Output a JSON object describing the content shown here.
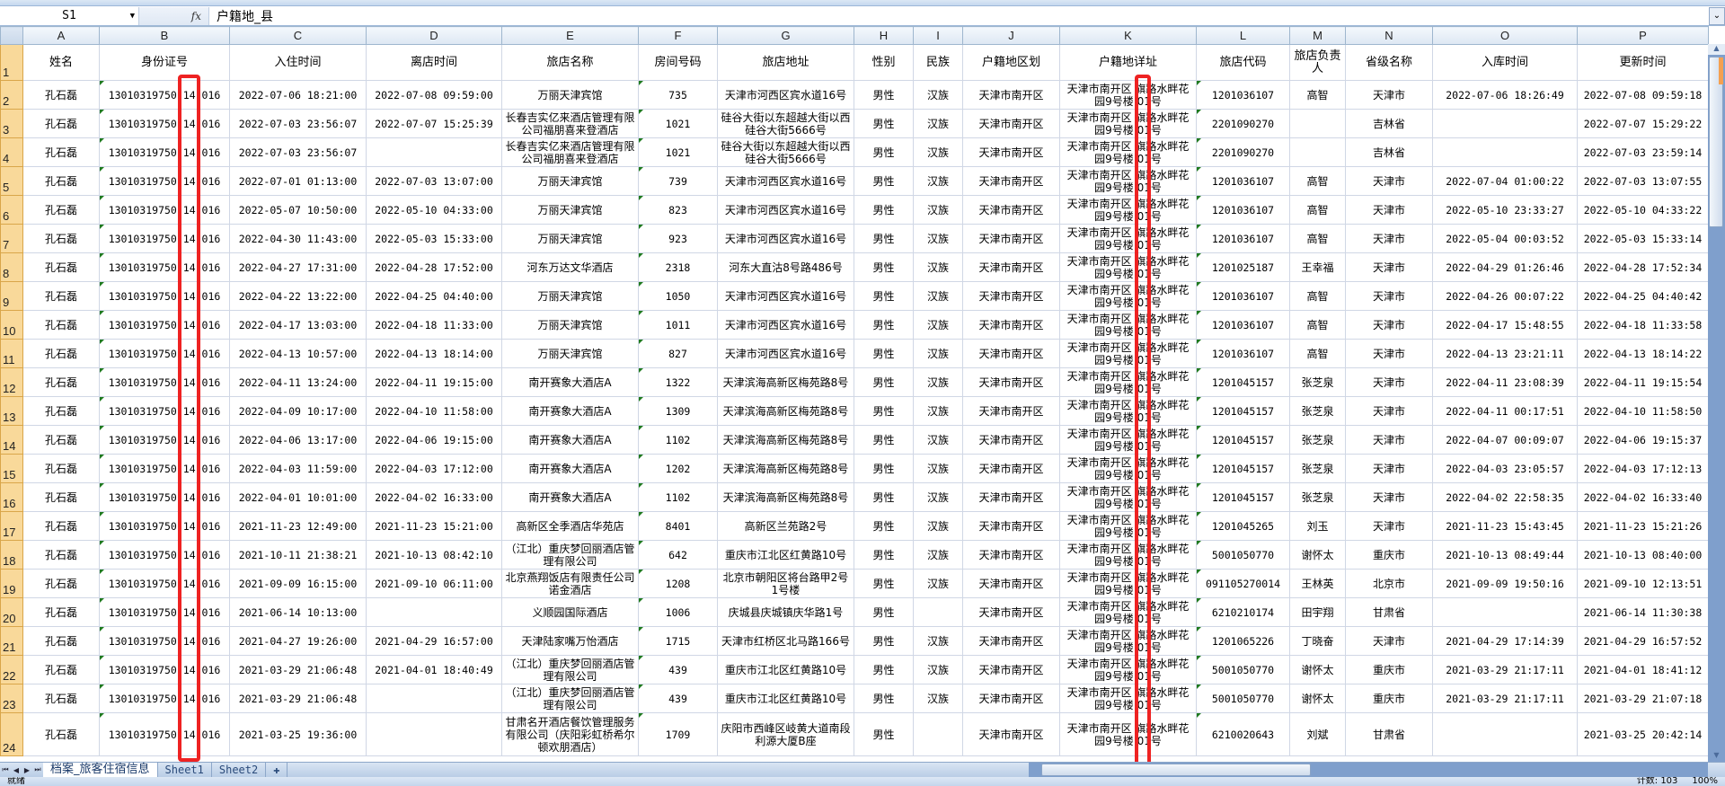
{
  "formula_bar": {
    "name_box": "S1",
    "fx_label": "fx",
    "content": "户籍地_县"
  },
  "columns": [
    "A",
    "B",
    "C",
    "D",
    "E",
    "F",
    "G",
    "H",
    "I",
    "J",
    "K",
    "L",
    "M",
    "N",
    "O",
    "P"
  ],
  "header_row": [
    "姓名",
    "身份证号",
    "入住时间",
    "离店时间",
    "旅店名称",
    "房间号码",
    "旅店地址",
    "性别",
    "民族",
    "户籍地区划",
    "户籍地详址",
    "旅店代码",
    "旅店负责人",
    "省级名称",
    "入库时间",
    "更新时间"
  ],
  "rows": [
    [
      "孔石磊",
      "13010319750 14 016",
      "2022-07-06 18:21:00",
      "2022-07-08 09:59:00",
      "万丽天津宾馆",
      "735",
      "天津市河西区宾水道16号",
      "男性",
      "汉族",
      "天津市南开区",
      "天津市南开区 旗路水畔花园9号楼 01号",
      "1201036107",
      "高智",
      "天津市",
      "2022-07-06 18:26:49",
      "2022-07-08 09:59:18"
    ],
    [
      "孔石磊",
      "13010319750 14 016",
      "2022-07-03 23:56:07",
      "2022-07-07 15:25:39",
      "长春吉实亿来酒店管理有限公司福朋喜来登酒店",
      "1021",
      "硅谷大街以东超越大街以西硅谷大街5666号",
      "男性",
      "汉族",
      "天津市南开区",
      "天津市南开区 旗路水畔花园9号楼 01号",
      "2201090270",
      "",
      "吉林省",
      "",
      "2022-07-07 15:29:22"
    ],
    [
      "孔石磊",
      "13010319750 14 016",
      "2022-07-03 23:56:07",
      "",
      "长春吉实亿来酒店管理有限公司福朋喜来登酒店",
      "1021",
      "硅谷大街以东超越大街以西硅谷大街5666号",
      "男性",
      "汉族",
      "天津市南开区",
      "天津市南开区 旗路水畔花园9号楼 01号",
      "2201090270",
      "",
      "吉林省",
      "",
      "2022-07-03 23:59:14"
    ],
    [
      "孔石磊",
      "13010319750 14 016",
      "2022-07-01 01:13:00",
      "2022-07-03 13:07:00",
      "万丽天津宾馆",
      "739",
      "天津市河西区宾水道16号",
      "男性",
      "汉族",
      "天津市南开区",
      "天津市南开区 旗路水畔花园9号楼 01号",
      "1201036107",
      "高智",
      "天津市",
      "2022-07-04 01:00:22",
      "2022-07-03 13:07:55"
    ],
    [
      "孔石磊",
      "13010319750 14 016",
      "2022-05-07 10:50:00",
      "2022-05-10 04:33:00",
      "万丽天津宾馆",
      "823",
      "天津市河西区宾水道16号",
      "男性",
      "汉族",
      "天津市南开区",
      "天津市南开区 旗路水畔花园9号楼 01号",
      "1201036107",
      "高智",
      "天津市",
      "2022-05-10 23:33:27",
      "2022-05-10 04:33:22"
    ],
    [
      "孔石磊",
      "13010319750 14 016",
      "2022-04-30 11:43:00",
      "2022-05-03 15:33:00",
      "万丽天津宾馆",
      "923",
      "天津市河西区宾水道16号",
      "男性",
      "汉族",
      "天津市南开区",
      "天津市南开区 旗路水畔花园9号楼 01号",
      "1201036107",
      "高智",
      "天津市",
      "2022-05-04 00:03:52",
      "2022-05-03 15:33:14"
    ],
    [
      "孔石磊",
      "13010319750 14 016",
      "2022-04-27 17:31:00",
      "2022-04-28 17:52:00",
      "河东万达文华酒店",
      "2318",
      "河东大直沽8号路486号",
      "男性",
      "汉族",
      "天津市南开区",
      "天津市南开区 旗路水畔花园9号楼 01号",
      "1201025187",
      "王幸福",
      "天津市",
      "2022-04-29 01:26:46",
      "2022-04-28 17:52:34"
    ],
    [
      "孔石磊",
      "13010319750 14 016",
      "2022-04-22 13:22:00",
      "2022-04-25 04:40:00",
      "万丽天津宾馆",
      "1050",
      "天津市河西区宾水道16号",
      "男性",
      "汉族",
      "天津市南开区",
      "天津市南开区 旗路水畔花园9号楼 01号",
      "1201036107",
      "高智",
      "天津市",
      "2022-04-26 00:07:22",
      "2022-04-25 04:40:42"
    ],
    [
      "孔石磊",
      "13010319750 14 016",
      "2022-04-17 13:03:00",
      "2022-04-18 11:33:00",
      "万丽天津宾馆",
      "1011",
      "天津市河西区宾水道16号",
      "男性",
      "汉族",
      "天津市南开区",
      "天津市南开区 旗路水畔花园9号楼 01号",
      "1201036107",
      "高智",
      "天津市",
      "2022-04-17 15:48:55",
      "2022-04-18 11:33:58"
    ],
    [
      "孔石磊",
      "13010319750 14 016",
      "2022-04-13 10:57:00",
      "2022-04-13 18:14:00",
      "万丽天津宾馆",
      "827",
      "天津市河西区宾水道16号",
      "男性",
      "汉族",
      "天津市南开区",
      "天津市南开区 旗路水畔花园9号楼 01号",
      "1201036107",
      "高智",
      "天津市",
      "2022-04-13 23:21:11",
      "2022-04-13 18:14:22"
    ],
    [
      "孔石磊",
      "13010319750 14 016",
      "2022-04-11 13:24:00",
      "2022-04-11 19:15:00",
      "南开赛象大酒店A",
      "1322",
      "天津滨海高新区梅苑路8号",
      "男性",
      "汉族",
      "天津市南开区",
      "天津市南开区 旗路水畔花园9号楼 01号",
      "1201045157",
      "张芝泉",
      "天津市",
      "2022-04-11 23:08:39",
      "2022-04-11 19:15:54"
    ],
    [
      "孔石磊",
      "13010319750 14 016",
      "2022-04-09 10:17:00",
      "2022-04-10 11:58:00",
      "南开赛象大酒店A",
      "1309",
      "天津滨海高新区梅苑路8号",
      "男性",
      "汉族",
      "天津市南开区",
      "天津市南开区 旗路水畔花园9号楼 01号",
      "1201045157",
      "张芝泉",
      "天津市",
      "2022-04-11 00:17:51",
      "2022-04-10 11:58:50"
    ],
    [
      "孔石磊",
      "13010319750 14 016",
      "2022-04-06 13:17:00",
      "2022-04-06 19:15:00",
      "南开赛象大酒店A",
      "1102",
      "天津滨海高新区梅苑路8号",
      "男性",
      "汉族",
      "天津市南开区",
      "天津市南开区 旗路水畔花园9号楼 01号",
      "1201045157",
      "张芝泉",
      "天津市",
      "2022-04-07 00:09:07",
      "2022-04-06 19:15:37"
    ],
    [
      "孔石磊",
      "13010319750 14 016",
      "2022-04-03 11:59:00",
      "2022-04-03 17:12:00",
      "南开赛象大酒店A",
      "1202",
      "天津滨海高新区梅苑路8号",
      "男性",
      "汉族",
      "天津市南开区",
      "天津市南开区 旗路水畔花园9号楼 01号",
      "1201045157",
      "张芝泉",
      "天津市",
      "2022-04-03 23:05:57",
      "2022-04-03 17:12:13"
    ],
    [
      "孔石磊",
      "13010319750 14 016",
      "2022-04-01 10:01:00",
      "2022-04-02 16:33:00",
      "南开赛象大酒店A",
      "1102",
      "天津滨海高新区梅苑路8号",
      "男性",
      "汉族",
      "天津市南开区",
      "天津市南开区 旗路水畔花园9号楼 01号",
      "1201045157",
      "张芝泉",
      "天津市",
      "2022-04-02 22:58:35",
      "2022-04-02 16:33:40"
    ],
    [
      "孔石磊",
      "13010319750 14 016",
      "2021-11-23 12:49:00",
      "2021-11-23 15:21:00",
      "高新区全季酒店华苑店",
      "8401",
      "高新区兰苑路2号",
      "男性",
      "汉族",
      "天津市南开区",
      "天津市南开区 旗路水畔花园9号楼 01号",
      "1201045265",
      "刘玉",
      "天津市",
      "2021-11-23 15:43:45",
      "2021-11-23 15:21:26"
    ],
    [
      "孔石磊",
      "13010319750 14 016",
      "2021-10-11 21:38:21",
      "2021-10-13 08:42:10",
      "（江北）重庆梦回丽酒店管理有限公司",
      "642",
      "重庆市江北区红黄路10号",
      "男性",
      "汉族",
      "天津市南开区",
      "天津市南开区 旗路水畔花园9号楼 01号",
      "5001050770",
      "谢怀太",
      "重庆市",
      "2021-10-13 08:49:44",
      "2021-10-13 08:40:00"
    ],
    [
      "孔石磊",
      "13010319750 14 016",
      "2021-09-09 16:15:00",
      "2021-09-10 06:11:00",
      "北京燕翔饭店有限责任公司诺金酒店",
      "1208",
      "北京市朝阳区将台路甲2号1号楼",
      "男性",
      "汉族",
      "天津市南开区",
      "天津市南开区 旗路水畔花园9号楼 01号",
      "091105270014",
      "王林英",
      "北京市",
      "2021-09-09 19:50:16",
      "2021-09-10 12:13:51"
    ],
    [
      "孔石磊",
      "13010319750 14 016",
      "2021-06-14 10:13:00",
      "",
      "义顺园国际酒店",
      "1006",
      "庆城县庆城镇庆华路1号",
      "男性",
      "",
      "天津市南开区",
      "天津市南开区 旗路水畔花园9号楼 01号",
      "6210210174",
      "田宇翔",
      "甘肃省",
      "",
      "2021-06-14 11:30:38"
    ],
    [
      "孔石磊",
      "13010319750 14 016",
      "2021-04-27 19:26:00",
      "2021-04-29 16:57:00",
      "天津陆家嘴万怡酒店",
      "1715",
      "天津市红桥区北马路166号",
      "男性",
      "汉族",
      "天津市南开区",
      "天津市南开区 旗路水畔花园9号楼 01号",
      "1201065226",
      "丁晓奋",
      "天津市",
      "2021-04-29 17:14:39",
      "2021-04-29 16:57:52"
    ],
    [
      "孔石磊",
      "13010319750 14 016",
      "2021-03-29 21:06:48",
      "2021-04-01 18:40:49",
      "（江北）重庆梦回丽酒店管理有限公司",
      "439",
      "重庆市江北区红黄路10号",
      "男性",
      "汉族",
      "天津市南开区",
      "天津市南开区 旗路水畔花园9号楼 01号",
      "5001050770",
      "谢怀太",
      "重庆市",
      "2021-03-29 21:17:11",
      "2021-04-01 18:41:12"
    ],
    [
      "孔石磊",
      "13010319750 14 016",
      "2021-03-29 21:06:48",
      "",
      "（江北）重庆梦回丽酒店管理有限公司",
      "439",
      "重庆市江北区红黄路10号",
      "男性",
      "汉族",
      "天津市南开区",
      "天津市南开区 旗路水畔花园9号楼 01号",
      "5001050770",
      "谢怀太",
      "重庆市",
      "2021-03-29 21:17:11",
      "2021-03-29 21:07:18"
    ],
    [
      "孔石磊",
      "13010319750 14 016",
      "2021-03-25 19:36:00",
      "",
      "甘肃名开酒店餐饮管理服务有限公司（庆阳彩虹桥希尔顿欢朋酒店）",
      "1709",
      "庆阳市西峰区岐黄大道南段利源大厦B座",
      "男性",
      "",
      "天津市南开区",
      "天津市南开区 旗路水畔花园9号楼 01号",
      "6210020643",
      "刘斌",
      "甘肃省",
      "",
      "2021-03-25 20:42:14"
    ]
  ],
  "sheet_tabs": {
    "active": "档案_旅客住宿信息",
    "others": [
      "Sheet1",
      "Sheet2"
    ]
  },
  "status": {
    "ready": "就绪",
    "count": "计数: 103",
    "zoom": "100%"
  },
  "colors": {
    "highlight_box": "#ee2222",
    "row_header": "#f9d99a",
    "scrollbar": "#7f9fcc"
  }
}
